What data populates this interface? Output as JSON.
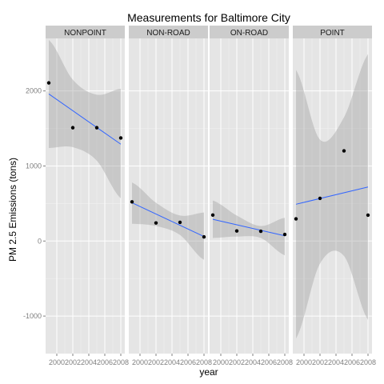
{
  "chart_data": {
    "type": "scatter",
    "title": "Measurements for Baltimore City",
    "xlabel": "year",
    "ylabel": "PM 2.5 Emissions (tons)",
    "x_ticks": [
      2000,
      2002,
      2004,
      2006,
      2008
    ],
    "x_tick_labels": [
      "2000",
      "2002",
      "2004",
      "2006",
      "2008"
    ],
    "y_ticks": [
      -1000,
      0,
      1000,
      2000
    ],
    "y_tick_labels": [
      "-1000",
      "0",
      "1000",
      "2000"
    ],
    "xlim": [
      1998.6,
      2008.5
    ],
    "ylim": [
      -1500,
      2700
    ],
    "facets": [
      {
        "name": "NONPOINT",
        "points": [
          [
            1999,
            2107
          ],
          [
            2002,
            1510
          ],
          [
            2005,
            1510
          ],
          [
            2008,
            1373
          ]
        ],
        "fit": [
          1999,
          1960,
          2008,
          1290
        ],
        "band_upper": [
          2680,
          2150,
          1950,
          2030
        ],
        "band_lower": [
          1240,
          1250,
          1070,
          570
        ]
      },
      {
        "name": "NON-ROAD",
        "points": [
          [
            1999,
            522
          ],
          [
            2002,
            241
          ],
          [
            2005,
            249
          ],
          [
            2008,
            55
          ]
        ],
        "fit": [
          1999,
          510,
          2008,
          60
        ],
        "band_upper": [
          780,
          510,
          340,
          380
        ],
        "band_lower": [
          230,
          200,
          80,
          -250
        ]
      },
      {
        "name": "ON-ROAD",
        "points": [
          [
            1999,
            346
          ],
          [
            2002,
            134
          ],
          [
            2005,
            130
          ],
          [
            2008,
            88
          ]
        ],
        "fit": [
          1999,
          290,
          2008,
          70
        ],
        "band_upper": [
          540,
          340,
          200,
          310
        ],
        "band_lower": [
          40,
          60,
          40,
          -190
        ]
      },
      {
        "name": "POINT",
        "points": [
          [
            1999,
            296
          ],
          [
            2002,
            569
          ],
          [
            2005,
            1202
          ],
          [
            2008,
            345
          ]
        ],
        "fit": [
          1999,
          490,
          2008,
          720
        ],
        "band_upper": [
          2280,
          1350,
          1650,
          2490
        ],
        "band_lower": [
          -1300,
          -300,
          -200,
          -1050
        ]
      }
    ],
    "colors": {
      "panel_bg": "#e5e5e5",
      "grid_major": "#ffffff",
      "grid_minor": "#f2f2f2",
      "strip_bg": "#cccccc",
      "band": "#9e9e9e",
      "fit_line": "#3366ff",
      "point": "#000000"
    }
  }
}
